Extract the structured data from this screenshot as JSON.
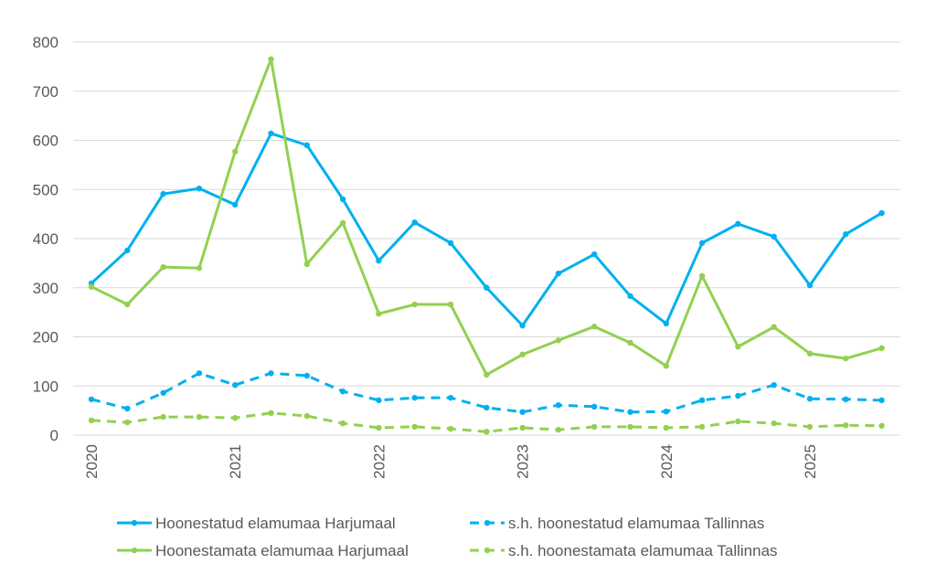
{
  "chart_data": {
    "type": "line",
    "title": "",
    "xlabel": "",
    "ylabel": "",
    "ylim": [
      0,
      800
    ],
    "yticks": [
      0,
      100,
      200,
      300,
      400,
      500,
      600,
      700,
      800
    ],
    "xtick_labels": [
      "2020",
      "2021",
      "2022",
      "2023",
      "2024",
      "2025"
    ],
    "x": [
      "2020 Q1",
      "2020 Q2",
      "2020 Q3",
      "2020 Q4",
      "2021 Q1",
      "2021 Q2",
      "2021 Q3",
      "2021 Q4",
      "2022 Q1",
      "2022 Q2",
      "2022 Q3",
      "2022 Q4",
      "2023 Q1",
      "2023 Q2",
      "2023 Q3",
      "2023 Q4",
      "2024 Q1",
      "2024 Q2",
      "2024 Q3",
      "2024 Q4",
      "2025 Q1",
      "2025 Q2",
      "2025 Q3"
    ],
    "grid": true,
    "legend_position": "bottom",
    "series": [
      {
        "name": "Hoonestatud elamumaa Harjumaal",
        "color": "#00B0F0",
        "dash": false,
        "values": [
          309,
          376,
          491,
          502,
          469,
          614,
          590,
          480,
          355,
          433,
          391,
          300,
          223,
          329,
          368,
          283,
          227,
          391,
          430,
          404,
          305,
          409,
          452
        ]
      },
      {
        "name": "s.h. hoonestatud elamumaa Tallinnas",
        "color": "#00B0F0",
        "dash": true,
        "values": [
          73,
          54,
          86,
          126,
          102,
          126,
          121,
          89,
          71,
          76,
          76,
          56,
          47,
          61,
          58,
          47,
          48,
          71,
          80,
          102,
          74,
          73,
          71
        ]
      },
      {
        "name": "Hoonestamata elamumaa Harjumaal",
        "color": "#92D050",
        "dash": false,
        "values": [
          302,
          266,
          342,
          340,
          577,
          765,
          348,
          432,
          247,
          266,
          266,
          123,
          164,
          193,
          221,
          188,
          141,
          324,
          180,
          220,
          166,
          156,
          177
        ]
      },
      {
        "name": "s.h. hoonestamata elamumaa Tallinnas",
        "color": "#92D050",
        "dash": true,
        "values": [
          30,
          26,
          37,
          37,
          35,
          45,
          39,
          24,
          15,
          17,
          13,
          7,
          15,
          11,
          17,
          17,
          15,
          17,
          28,
          24,
          17,
          20,
          19
        ]
      }
    ]
  }
}
